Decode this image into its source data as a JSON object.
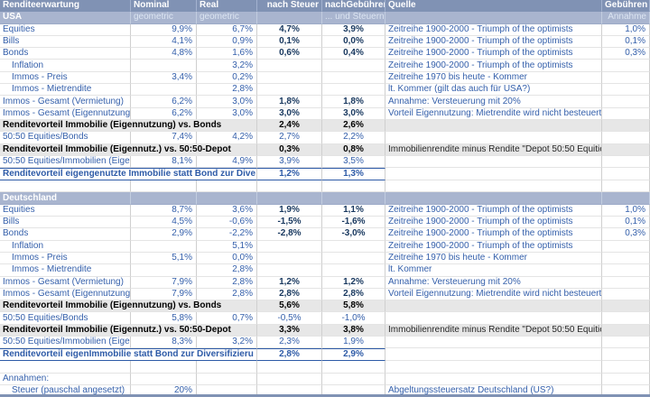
{
  "colors": {
    "header_bg": "#8092b4",
    "band_bg": "#a9b5cf",
    "blue_text": "#3560ab",
    "navy_bold": "#17375e",
    "gray_row": "#e7e7e7",
    "border_blue": "#2d5aa7"
  },
  "table": {
    "header": [
      "Renditeerwartung",
      "Nominal",
      "Real",
      "nach Steuer",
      "nachGebühren",
      "Quelle",
      "Gebühren"
    ],
    "sections": [
      {
        "band": {
          "title": "USA",
          "sub_nominal": "geometric",
          "sub_real": "geometric",
          "sub_tax": "",
          "sub_fees": "... und Steuern",
          "sub_quelle": "",
          "sub_fee": "Annahme"
        },
        "rows": [
          {
            "type": "data",
            "label": "Equities",
            "nominal": "9,9%",
            "real": "6,7%",
            "tax": "4,7%",
            "fees": "3,9%",
            "source": "Zeitreihe 1900-2000 - Triumph of the optimists",
            "fee": "1,0%",
            "bold": true
          },
          {
            "type": "data",
            "label": "Bills",
            "nominal": "4,1%",
            "real": "0,9%",
            "tax": "0,1%",
            "fees": "0,0%",
            "source": "Zeitreihe 1900-2000 - Triumph of the optimists",
            "fee": "0,1%",
            "bold": true
          },
          {
            "type": "data",
            "label": "Bonds",
            "nominal": "4,8%",
            "real": "1,6%",
            "tax": "0,6%",
            "fees": "0,4%",
            "source": "Zeitreihe 1900-2000 - Triumph of the optimists",
            "fee": "0,3%",
            "bold": true
          },
          {
            "type": "sub",
            "label": "Inflation",
            "nominal": "",
            "real": "3,2%",
            "tax": "",
            "fees": "",
            "source": "Zeitreihe 1900-2000 - Triumph of the optimists",
            "fee": ""
          },
          {
            "type": "sub",
            "label": "Immos - Preis",
            "nominal": "3,4%",
            "real": "0,2%",
            "tax": "",
            "fees": "",
            "source": "Zeitreihe 1970 bis heute - Kommer",
            "fee": ""
          },
          {
            "type": "sub",
            "label": "Immos - Mietrendite",
            "nominal": "",
            "real": "2,8%",
            "tax": "",
            "fees": "",
            "source": "lt. Kommer (gilt das auch für USA?)",
            "fee": ""
          },
          {
            "type": "data",
            "label": "Immos - Gesamt (Vermietung)",
            "nominal": "6,2%",
            "real": "3,0%",
            "tax": "1,8%",
            "fees": "1,8%",
            "source": "Annahme: Versteuerung mit 20%",
            "fee": "",
            "bold": true
          },
          {
            "type": "data",
            "label": "Immos - Gesamt (Eigennutzung)",
            "nominal": "6,2%",
            "real": "3,0%",
            "tax": "3,0%",
            "fees": "3,0%",
            "source": "Vorteil Eigennutzung: Mietrendite wird nicht besteuert",
            "fee": "",
            "bold": true
          },
          {
            "type": "gray",
            "label": "Renditevorteil Immobilie (Eigennutzung) vs. Bonds",
            "tax": "2,4%",
            "fees": "2,6%",
            "source": ""
          },
          {
            "type": "data",
            "label": "50:50 Equities/Bonds",
            "nominal": "7,4%",
            "real": "4,2%",
            "tax": "2,7%",
            "fees": "2,2%",
            "source": "",
            "fee": "",
            "bold": false
          },
          {
            "type": "gray",
            "label": "Renditevorteil Immobilie (Eigennutz.) vs. 50:50-Depot",
            "tax": "0,3%",
            "fees": "0,8%",
            "source": "Immobilienrendite minus Rendite \"Depot 50:50 Equities/Bond\""
          },
          {
            "type": "data",
            "label": "50:50 Equities/Immobilien (Eigenn",
            "nominal": "8,1%",
            "real": "4,9%",
            "tax": "3,9%",
            "fees": "3,5%",
            "source": "",
            "fee": "",
            "bold": false
          },
          {
            "type": "blue",
            "label": "Renditevorteil eigengenutzte Immobilie statt Bond zur Dive",
            "tax": "1,2%",
            "fees": "1,3%"
          },
          {
            "type": "blank"
          }
        ]
      },
      {
        "band": {
          "title": "Deutschland",
          "sub_nominal": "",
          "sub_real": "",
          "sub_tax": "",
          "sub_fees": "",
          "sub_quelle": "",
          "sub_fee": ""
        },
        "rows": [
          {
            "type": "data",
            "label": "Equities",
            "nominal": "8,7%",
            "real": "3,6%",
            "tax": "1,9%",
            "fees": "1,1%",
            "source": "Zeitreihe 1900-2000 - Triumph of the optimists",
            "fee": "1,0%",
            "bold": true
          },
          {
            "type": "data",
            "label": "Bills",
            "nominal": "4,5%",
            "real": "-0,6%",
            "tax": "-1,5%",
            "fees": "-1,6%",
            "source": "Zeitreihe 1900-2000 - Triumph of the optimists",
            "fee": "0,1%",
            "bold": true
          },
          {
            "type": "data",
            "label": "Bonds",
            "nominal": "2,9%",
            "real": "-2,2%",
            "tax": "-2,8%",
            "fees": "-3,0%",
            "source": "Zeitreihe 1900-2000 - Triumph of the optimists",
            "fee": "0,3%",
            "bold": true
          },
          {
            "type": "sub",
            "label": "Inflation",
            "nominal": "",
            "real": "5,1%",
            "tax": "",
            "fees": "",
            "source": "Zeitreihe 1900-2000 - Triumph of the optimists",
            "fee": ""
          },
          {
            "type": "sub",
            "label": "Immos - Preis",
            "nominal": "5,1%",
            "real": "0,0%",
            "tax": "",
            "fees": "",
            "source": "Zeitreihe 1970 bis heute - Kommer",
            "fee": ""
          },
          {
            "type": "sub",
            "label": "Immos - Mietrendite",
            "nominal": "",
            "real": "2,8%",
            "tax": "",
            "fees": "",
            "source": "lt. Kommer",
            "fee": ""
          },
          {
            "type": "data",
            "label": "Immos - Gesamt (Vermietung)",
            "nominal": "7,9%",
            "real": "2,8%",
            "tax": "1,2%",
            "fees": "1,2%",
            "source": "Annahme: Versteuerung mit 20%",
            "fee": "",
            "bold": true
          },
          {
            "type": "data",
            "label": "Immos - Gesamt (Eigennutzung)",
            "nominal": "7,9%",
            "real": "2,8%",
            "tax": "2,8%",
            "fees": "2,8%",
            "source": "Vorteil Eigennutzung: Mietrendite wird nicht besteuert",
            "fee": "",
            "bold": true
          },
          {
            "type": "gray",
            "label": "Renditevorteil Immobilie (Eigennutzung) vs. Bonds",
            "tax": "5,6%",
            "fees": "5,8%",
            "source": ""
          },
          {
            "type": "data",
            "label": "50:50 Equities/Bonds",
            "nominal": "5,8%",
            "real": "0,7%",
            "tax": "-0,5%",
            "fees": "-1,0%",
            "source": "",
            "fee": "",
            "bold": false
          },
          {
            "type": "gray",
            "label": "Renditevorteil Immobilie (Eigennutz.) vs. 50:50-Depot",
            "tax": "3,3%",
            "fees": "3,8%",
            "source": "Immobilienrendite minus Rendite \"Depot 50:50 Equities/Bond\""
          },
          {
            "type": "data",
            "label": "50:50 Equities/Immobilien (Eigenn",
            "nominal": "8,3%",
            "real": "3,2%",
            "tax": "2,3%",
            "fees": "1,9%",
            "source": "",
            "fee": "",
            "bold": false
          },
          {
            "type": "blue",
            "label": "Renditevorteil eigenImmobilie statt Bond zur Diversifizieru",
            "tax": "2,8%",
            "fees": "2,9%"
          }
        ]
      },
      {
        "band": null,
        "rows": [
          {
            "type": "blank"
          },
          {
            "type": "data",
            "label": "Annahmen:",
            "nominal": "",
            "real": "",
            "tax": "",
            "fees": "",
            "source": "",
            "fee": "",
            "bold": false
          },
          {
            "type": "sub",
            "label": "Steuer (pauschal angesetzt)",
            "nominal": "20%",
            "real": "",
            "tax": "",
            "fees": "",
            "source": "Abgeltungssteuersatz Deutschland (US?)",
            "fee": ""
          }
        ]
      }
    ]
  }
}
